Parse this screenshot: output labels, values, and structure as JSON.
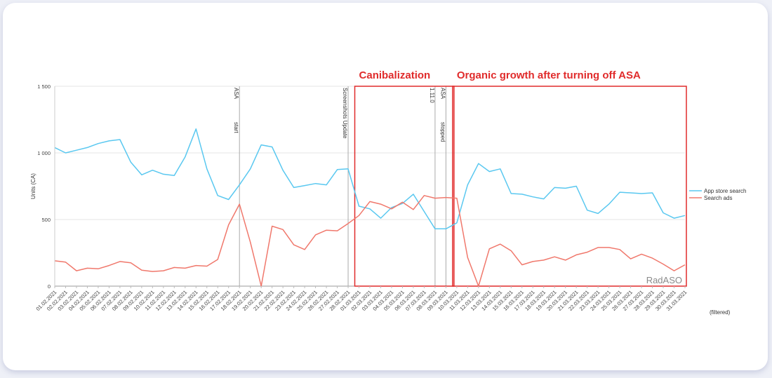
{
  "chart_data": {
    "type": "line",
    "ylabel": "Units (CA)",
    "ylim": [
      0,
      1500
    ],
    "yticks": [
      0,
      500,
      1000,
      1500
    ],
    "ytick_labels": [
      "0",
      "500",
      "1 000",
      "1 500"
    ],
    "grid": true,
    "legend_position": "right",
    "categories": [
      "01.02.2021",
      "02.02.2021",
      "03.02.2021",
      "04.02.2021",
      "05.02.2021",
      "06.02.2021",
      "07.02.2021",
      "08.02.2021",
      "09.02.2021",
      "10.02.2021",
      "11.02.2021",
      "12.02.2021",
      "13.02.2021",
      "14.02.2021",
      "15.02.2021",
      "16.02.2021",
      "17.02.2021",
      "18.02.2021",
      "19.02.2021",
      "20.02.2021",
      "21.02.2021",
      "22.02.2021",
      "23.02.2021",
      "24.02.2021",
      "25.02.2021",
      "26.02.2021",
      "27.02.2021",
      "28.02.2021",
      "01.03.2021",
      "02.03.2021",
      "03.03.2021",
      "04.03.2021",
      "05.03.2021",
      "06.03.2021",
      "07.03.2021",
      "08.03.2021",
      "09.03.2021",
      "10.03.2021",
      "11.03.2021",
      "12.03.2021",
      "13.03.2021",
      "14.03.2021",
      "15.03.2021",
      "16.03.2021",
      "17.03.2021",
      "18.03.2021",
      "19.03.2021",
      "20.03.2021",
      "21.03.2021",
      "22.03.2021",
      "23.03.2021",
      "24.03.2021",
      "25.03.2021",
      "26.03.2021",
      "27.03.2021",
      "28.03.2021",
      "29.03.2021",
      "30.03.2021",
      "31.03.2021"
    ],
    "series": [
      {
        "name": "App store search",
        "color": "#5ac8f0",
        "values": [
          1040,
          1000,
          1020,
          1040,
          1070,
          1090,
          1100,
          930,
          835,
          870,
          840,
          830,
          970,
          1180,
          880,
          680,
          650,
          760,
          880,
          1060,
          1045,
          870,
          740,
          755,
          770,
          760,
          875,
          880,
          600,
          580,
          510,
          590,
          620,
          690,
          560,
          430,
          430,
          475,
          760,
          920,
          860,
          880,
          695,
          690,
          670,
          655,
          740,
          735,
          750,
          570,
          545,
          615,
          705,
          700,
          695,
          700,
          550,
          510,
          530
        ]
      },
      {
        "name": "Search ads",
        "color": "#f0786c",
        "values": [
          190,
          180,
          115,
          135,
          130,
          155,
          185,
          175,
          120,
          110,
          115,
          140,
          135,
          155,
          150,
          200,
          460,
          615,
          330,
          0,
          450,
          425,
          310,
          275,
          385,
          420,
          415,
          470,
          530,
          635,
          615,
          580,
          630,
          575,
          680,
          660,
          665,
          660,
          215,
          0,
          280,
          315,
          265,
          160,
          185,
          195,
          220,
          195,
          235,
          255,
          290,
          290,
          275,
          205,
          240,
          210,
          165,
          115,
          160
        ]
      }
    ],
    "vertical_markers": [
      {
        "x": "18.02.2021",
        "label_top": "ASA",
        "label_bottom": "start"
      },
      {
        "x": "28.02.2021",
        "label_top": "Screenshots Update",
        "label_bottom": ""
      },
      {
        "x": "09.03.2021",
        "label_top": "ASA",
        "label_bottom": "stopped"
      },
      {
        "x": "08.03.2021",
        "label_top": "1.11.0",
        "label_bottom": ""
      }
    ],
    "annotations": [
      {
        "text": "Canibalization",
        "color": "#e02b2b",
        "from": "01.03.2021",
        "to": "10.03.2021"
      },
      {
        "text": "Organic growth after turning off ASA",
        "color": "#e02b2b",
        "from": "10.03.2021",
        "to": "31.03.2021"
      }
    ],
    "watermark": "RadASO",
    "footnote": "(filtered)"
  }
}
